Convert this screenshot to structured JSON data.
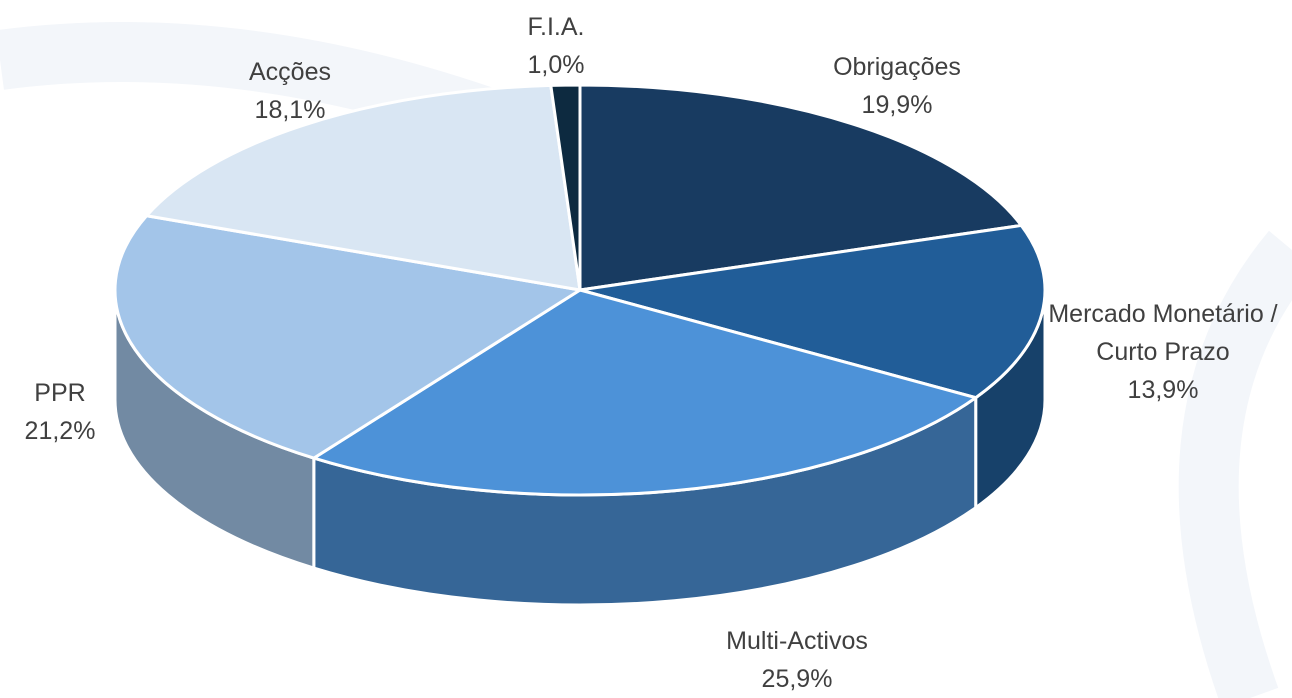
{
  "chart_data": {
    "type": "pie",
    "categories": [
      "Obrigações",
      "Mercado Monetário / Curto Prazo",
      "Multi-Activos",
      "PPR",
      "Acções",
      "F.I.A."
    ],
    "values": [
      19.9,
      13.9,
      25.9,
      21.2,
      18.1,
      1.0
    ],
    "value_labels": [
      "19,9%",
      "13,9%",
      "25,9%",
      "21,2%",
      "18,1%",
      "1,0%"
    ],
    "colors": [
      "#183b61",
      "#215d98",
      "#4d92d8",
      "#a3c5e9",
      "#d9e6f3",
      "#0d2a40"
    ]
  }
}
